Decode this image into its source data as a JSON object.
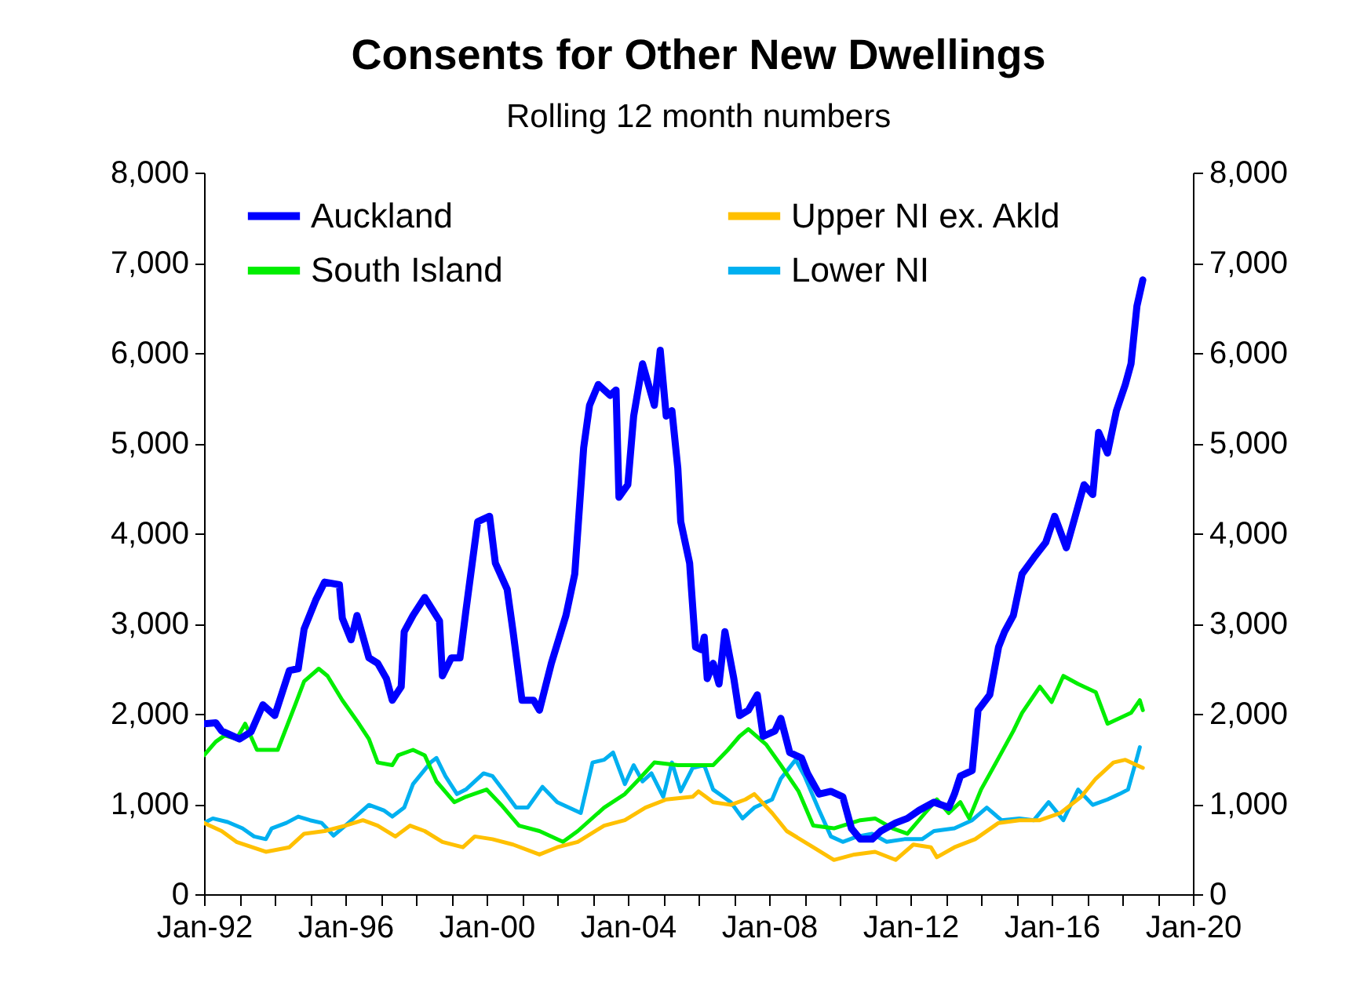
{
  "chart_data": {
    "type": "line",
    "title": "Consents for Other New Dwellings",
    "subtitle": "Rolling 12 month numbers",
    "xlim": [
      "1992-01",
      "2020-01"
    ],
    "xticks": [
      {
        "value": "1992-01",
        "label": "Jan-92"
      },
      {
        "value": "1993-01",
        "label": null
      },
      {
        "value": "1994-01",
        "label": null
      },
      {
        "value": "1995-01",
        "label": null
      },
      {
        "value": "1996-01",
        "label": "Jan-96"
      },
      {
        "value": "1997-01",
        "label": null
      },
      {
        "value": "1998-01",
        "label": null
      },
      {
        "value": "1999-01",
        "label": null
      },
      {
        "value": "2000-01",
        "label": "Jan-00"
      },
      {
        "value": "2001-01",
        "label": null
      },
      {
        "value": "2002-01",
        "label": null
      },
      {
        "value": "2003-01",
        "label": null
      },
      {
        "value": "2004-01",
        "label": "Jan-04"
      },
      {
        "value": "2005-01",
        "label": null
      },
      {
        "value": "2006-01",
        "label": null
      },
      {
        "value": "2007-01",
        "label": null
      },
      {
        "value": "2008-01",
        "label": "Jan-08"
      },
      {
        "value": "2009-01",
        "label": null
      },
      {
        "value": "2010-01",
        "label": null
      },
      {
        "value": "2011-01",
        "label": null
      },
      {
        "value": "2012-01",
        "label": "Jan-12"
      },
      {
        "value": "2013-01",
        "label": null
      },
      {
        "value": "2014-01",
        "label": null
      },
      {
        "value": "2015-01",
        "label": null
      },
      {
        "value": "2016-01",
        "label": "Jan-16"
      },
      {
        "value": "2017-01",
        "label": null
      },
      {
        "value": "2018-01",
        "label": null
      },
      {
        "value": "2019-01",
        "label": null
      },
      {
        "value": "2020-01",
        "label": "Jan-20"
      }
    ],
    "ylim": [
      0,
      8000
    ],
    "yticks": [
      0,
      {
        "value": 1000,
        "label": "1,000"
      },
      {
        "value": 2000,
        "label": "2,000"
      },
      {
        "value": 3000,
        "label": "3,000"
      },
      {
        "value": 4000,
        "label": "4,000"
      },
      {
        "value": 5000,
        "label": "5,000"
      },
      {
        "value": 6000,
        "label": "6,000"
      },
      {
        "value": 7000,
        "label": "7,000"
      },
      {
        "value": 8000,
        "label": "8,000"
      }
    ],
    "y2lim": [
      0,
      8000
    ],
    "y2ticks": [
      0,
      {
        "value": 1000,
        "label": "1,000"
      },
      {
        "value": 2000,
        "label": "2,000"
      },
      {
        "value": 3000,
        "label": "3,000"
      },
      {
        "value": 4000,
        "label": "4,000"
      },
      {
        "value": 5000,
        "label": "5,000"
      },
      {
        "value": 6000,
        "label": "6,000"
      },
      {
        "value": 7000,
        "label": "7,000"
      },
      {
        "value": 8000,
        "label": "8,000"
      }
    ],
    "grid": false,
    "legend": "top",
    "marker": "none",
    "line_style": "solid",
    "series": [
      {
        "name": "Auckland",
        "color": "#0000ff",
        "x": [
          "1992-01",
          "1992-05",
          "1992-07",
          "1993-01",
          "1993-05",
          "1993-09",
          "1994-01",
          "1994-06",
          "1994-09",
          "1994-11",
          "1995-03",
          "1995-06",
          "1995-11",
          "1995-12",
          "1996-03",
          "1996-05",
          "1996-09",
          "1996-12",
          "1997-03",
          "1997-05",
          "1997-08",
          "1997-09",
          "1997-12",
          "1998-04",
          "1998-09",
          "1998-10",
          "1999-01",
          "1999-04",
          "1999-06",
          "1999-10",
          "2000-02",
          "2000-04",
          "2000-08",
          "2000-10",
          "2001-01",
          "2001-05",
          "2001-07",
          "2001-11",
          "2002-04",
          "2002-07",
          "2002-10",
          "2002-12",
          "2003-03",
          "2003-07",
          "2003-09",
          "2003-10",
          "2004-01",
          "2004-03",
          "2004-06",
          "2004-10",
          "2004-12",
          "2005-02",
          "2005-04",
          "2005-06",
          "2005-07",
          "2005-10",
          "2005-12",
          "2006-02",
          "2006-03",
          "2006-04",
          "2006-06",
          "2006-08",
          "2006-10",
          "2007-01",
          "2007-03",
          "2007-06",
          "2007-09",
          "2007-11",
          "2008-03",
          "2008-05",
          "2008-08",
          "2008-12",
          "2009-02",
          "2009-06",
          "2009-10",
          "2010-02",
          "2010-05",
          "2010-08",
          "2010-12",
          "2011-03",
          "2011-08",
          "2011-12",
          "2012-04",
          "2012-09",
          "2013-02",
          "2013-04",
          "2013-06",
          "2013-10",
          "2013-12",
          "2014-04",
          "2014-07",
          "2014-09",
          "2014-12",
          "2015-03",
          "2015-07",
          "2015-11",
          "2016-02",
          "2016-06",
          "2016-09",
          "2016-12",
          "2017-03",
          "2017-05",
          "2017-08",
          "2017-11",
          "2018-02",
          "2018-04",
          "2018-06",
          "2018-08"
        ],
        "values": [
          1890,
          1900,
          1810,
          1720,
          1800,
          2100,
          1980,
          2480,
          2500,
          2940,
          3260,
          3460,
          3430,
          3060,
          2820,
          3090,
          2620,
          2560,
          2390,
          2150,
          2300,
          2910,
          3090,
          3290,
          3030,
          2420,
          2620,
          2620,
          3140,
          4130,
          4190,
          3670,
          3380,
          2910,
          2150,
          2150,
          2040,
          2560,
          3090,
          3550,
          4950,
          5420,
          5650,
          5530,
          5590,
          4400,
          4540,
          5300,
          5880,
          5420,
          6030,
          5300,
          5360,
          4720,
          4130,
          3670,
          2740,
          2710,
          2850,
          2390,
          2560,
          2330,
          2910,
          2390,
          1980,
          2040,
          2210,
          1750,
          1810,
          1950,
          1570,
          1510,
          1340,
          1110,
          1140,
          1080,
          730,
          610,
          610,
          700,
          790,
          840,
          930,
          1020,
          960,
          1110,
          1310,
          1370,
          2040,
          2210,
          2740,
          2910,
          3090,
          3550,
          3730,
          3900,
          4190,
          3840,
          4190,
          4540,
          4430,
          5120,
          4890,
          5360,
          5650,
          5880,
          6520,
          6810
        ]
      },
      {
        "name": "Upper NI ex. Akld",
        "color": "#ffc000",
        "x": [
          "1992-01",
          "1992-07",
          "1992-12",
          "1993-10",
          "1994-06",
          "1994-11",
          "1995-06",
          "1996-01",
          "1996-07",
          "1996-12",
          "1997-06",
          "1997-11",
          "1998-04",
          "1998-10",
          "1999-05",
          "1999-09",
          "2000-03",
          "2000-10",
          "2001-07",
          "2002-01",
          "2002-08",
          "2003-05",
          "2003-12",
          "2004-07",
          "2005-02",
          "2005-11",
          "2006-01",
          "2006-06",
          "2006-12",
          "2007-05",
          "2007-08",
          "2008-02",
          "2008-07",
          "2009-04",
          "2009-11",
          "2010-06",
          "2011-01",
          "2011-08",
          "2012-02",
          "2012-08",
          "2012-10",
          "2013-04",
          "2013-11",
          "2014-07",
          "2015-02",
          "2015-09",
          "2016-04",
          "2016-11",
          "2017-04",
          "2017-10",
          "2018-02",
          "2018-08"
        ],
        "values": [
          790,
          700,
          580,
          470,
          520,
          670,
          700,
          760,
          820,
          760,
          640,
          760,
          700,
          580,
          520,
          640,
          610,
          550,
          440,
          520,
          580,
          760,
          820,
          960,
          1050,
          1080,
          1140,
          1020,
          990,
          1050,
          1110,
          900,
          700,
          520,
          380,
          440,
          470,
          380,
          550,
          520,
          410,
          520,
          610,
          790,
          820,
          820,
          900,
          1080,
          1280,
          1460,
          1490,
          1400
        ]
      },
      {
        "name": "South Island",
        "color": "#00ee00",
        "x": [
          "1992-01",
          "1992-05",
          "1992-08",
          "1992-12",
          "1993-03",
          "1993-07",
          "1994-02",
          "1994-08",
          "1994-11",
          "1995-04",
          "1995-07",
          "1995-12",
          "1996-05",
          "1996-09",
          "1996-12",
          "1997-05",
          "1997-07",
          "1997-12",
          "1998-04",
          "1998-08",
          "1999-02",
          "1999-06",
          "2000-01",
          "2000-06",
          "2000-12",
          "2001-07",
          "2002-03",
          "2002-08",
          "2003-05",
          "2003-12",
          "2004-05",
          "2004-10",
          "2005-06",
          "2006-02",
          "2006-06",
          "2006-11",
          "2007-03",
          "2007-06",
          "2007-12",
          "2008-05",
          "2008-11",
          "2009-04",
          "2009-11",
          "2010-08",
          "2011-01",
          "2011-07",
          "2011-12",
          "2012-06",
          "2012-10",
          "2013-02",
          "2013-06",
          "2013-09",
          "2014-01",
          "2014-07",
          "2014-12",
          "2015-03",
          "2015-09",
          "2016-01",
          "2016-05",
          "2016-10",
          "2017-04",
          "2017-08",
          "2017-12",
          "2018-04",
          "2018-07",
          "2018-08"
        ],
        "values": [
          1540,
          1690,
          1760,
          1720,
          1890,
          1600,
          1600,
          2100,
          2360,
          2500,
          2420,
          2150,
          1920,
          1720,
          1460,
          1430,
          1540,
          1600,
          1540,
          1250,
          1020,
          1080,
          1160,
          990,
          760,
          700,
          580,
          700,
          960,
          1110,
          1280,
          1460,
          1430,
          1430,
          1430,
          1600,
          1750,
          1830,
          1660,
          1430,
          1140,
          760,
          730,
          820,
          840,
          730,
          670,
          900,
          1050,
          900,
          1020,
          840,
          1160,
          1510,
          1810,
          2010,
          2300,
          2130,
          2420,
          2330,
          2240,
          1890,
          1950,
          2010,
          2150,
          2040
        ]
      },
      {
        "name": "Lower NI",
        "color": "#00b0f0",
        "x": [
          "1992-01",
          "1992-04",
          "1992-09",
          "1993-02",
          "1993-06",
          "1993-10",
          "1993-12",
          "1994-05",
          "1994-09",
          "1995-01",
          "1995-05",
          "1995-09",
          "1996-01",
          "1996-09",
          "1997-02",
          "1997-05",
          "1997-09",
          "1997-12",
          "1998-06",
          "1998-08",
          "1998-11",
          "1999-03",
          "1999-06",
          "1999-12",
          "2000-03",
          "2000-07",
          "2000-11",
          "2001-03",
          "2001-08",
          "2002-01",
          "2002-09",
          "2003-01",
          "2003-05",
          "2003-08",
          "2003-12",
          "2004-03",
          "2004-06",
          "2004-09",
          "2005-01",
          "2005-04",
          "2005-07",
          "2005-11",
          "2006-03",
          "2006-06",
          "2006-12",
          "2007-04",
          "2007-08",
          "2008-02",
          "2008-05",
          "2008-10",
          "2009-01",
          "2009-06",
          "2009-10",
          "2010-02",
          "2010-07",
          "2010-12",
          "2011-05",
          "2011-11",
          "2012-05",
          "2012-09",
          "2013-04",
          "2013-10",
          "2014-03",
          "2014-08",
          "2015-02",
          "2015-07",
          "2015-12",
          "2016-05",
          "2016-10",
          "2017-03",
          "2017-08",
          "2017-12",
          "2018-03",
          "2018-06",
          "2018-07"
        ],
        "values": [
          790,
          840,
          800,
          730,
          640,
          610,
          730,
          790,
          860,
          820,
          790,
          650,
          760,
          990,
          930,
          860,
          960,
          1220,
          1460,
          1510,
          1310,
          1110,
          1160,
          1340,
          1310,
          1140,
          960,
          960,
          1190,
          1020,
          900,
          1460,
          1490,
          1570,
          1220,
          1430,
          1250,
          1340,
          1080,
          1460,
          1140,
          1400,
          1430,
          1160,
          1020,
          840,
          960,
          1050,
          1280,
          1490,
          1310,
          930,
          640,
          580,
          640,
          670,
          580,
          610,
          610,
          700,
          730,
          820,
          960,
          820,
          840,
          820,
          1020,
          820,
          1160,
          990,
          1050,
          1110,
          1160,
          1510,
          1630
        ]
      }
    ]
  }
}
